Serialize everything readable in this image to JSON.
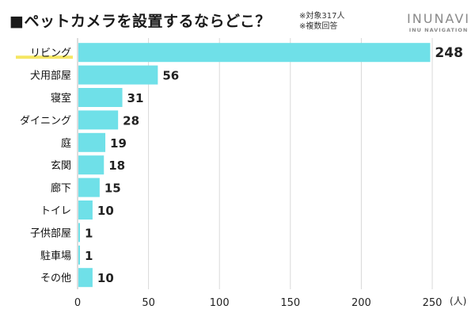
{
  "header": {
    "title": "■ペットカメラを設置するならどこ？",
    "notes": [
      "※対象317人",
      "※複数回答"
    ],
    "logo_main": "INUNAVI",
    "logo_sub": "INU NAVIGATION"
  },
  "chart_data": {
    "type": "bar",
    "orientation": "horizontal",
    "categories": [
      "リビング",
      "犬用部屋",
      "寝室",
      "ダイニング",
      "庭",
      "玄関",
      "廊下",
      "トイレ",
      "子供部屋",
      "駐車場",
      "その他"
    ],
    "values": [
      248,
      56,
      31,
      28,
      19,
      18,
      15,
      10,
      1,
      1,
      10
    ],
    "xticks": [
      0,
      50,
      100,
      150,
      200,
      250
    ],
    "xlim": [
      0,
      250
    ],
    "unit": "(人)",
    "grid": true,
    "highlight_index": 0,
    "colors": {
      "bar": "#6fe0e8",
      "grid": "#d9d9d9",
      "highlight_underline": "#f5e663"
    }
  }
}
